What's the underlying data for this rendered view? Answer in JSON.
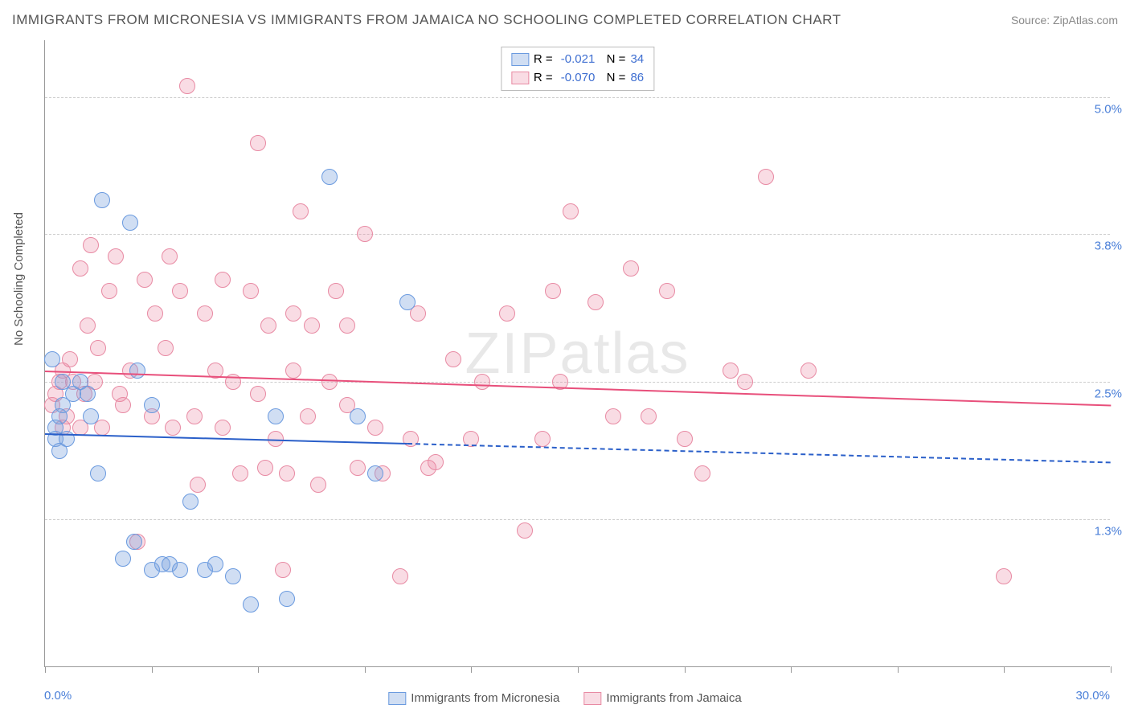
{
  "title": "IMMIGRANTS FROM MICRONESIA VS IMMIGRANTS FROM JAMAICA NO SCHOOLING COMPLETED CORRELATION CHART",
  "source": "Source: ZipAtlas.com",
  "watermark": "ZIPatlas",
  "ylabel": "No Schooling Completed",
  "chart": {
    "type": "scatter",
    "xlim": [
      0,
      30
    ],
    "ylim": [
      0,
      5.5
    ],
    "x_tick_positions": [
      0,
      3,
      6,
      9,
      12,
      15,
      18,
      21,
      24,
      27,
      30
    ],
    "x_start_label": "0.0%",
    "x_end_label": "30.0%",
    "y_ticks": [
      1.3,
      2.5,
      3.8,
      5.0
    ],
    "y_tick_labels": [
      "1.3%",
      "2.5%",
      "3.8%",
      "5.0%"
    ],
    "grid_color": "#cccccc",
    "axis_color": "#999999",
    "background": "#ffffff",
    "series": [
      {
        "name": "Immigrants from Micronesia",
        "fill": "rgba(120,160,220,0.35)",
        "stroke": "#6a9adf",
        "line_color": "#2a5fc9",
        "R": "-0.021",
        "N": "34",
        "trend": {
          "y_start": 2.05,
          "y_end": 1.8,
          "solid_until_x": 10.2
        },
        "points": [
          [
            0.2,
            2.7
          ],
          [
            0.3,
            2.1
          ],
          [
            0.3,
            2.0
          ],
          [
            0.4,
            1.9
          ],
          [
            0.5,
            2.5
          ],
          [
            0.5,
            2.3
          ],
          [
            0.8,
            2.4
          ],
          [
            1.0,
            2.5
          ],
          [
            1.2,
            2.4
          ],
          [
            1.5,
            1.7
          ],
          [
            1.6,
            4.1
          ],
          [
            2.2,
            0.95
          ],
          [
            2.4,
            3.9
          ],
          [
            2.5,
            1.1
          ],
          [
            2.6,
            2.6
          ],
          [
            3.0,
            0.85
          ],
          [
            3.3,
            0.9
          ],
          [
            3.5,
            0.9
          ],
          [
            3.8,
            0.85
          ],
          [
            4.1,
            1.45
          ],
          [
            4.5,
            0.85
          ],
          [
            5.3,
            0.8
          ],
          [
            5.8,
            0.55
          ],
          [
            6.5,
            2.2
          ],
          [
            6.8,
            0.6
          ],
          [
            8.0,
            4.3
          ],
          [
            8.8,
            2.2
          ],
          [
            9.3,
            1.7
          ],
          [
            10.2,
            3.2
          ],
          [
            3.0,
            2.3
          ],
          [
            1.3,
            2.2
          ],
          [
            0.6,
            2.0
          ],
          [
            4.8,
            0.9
          ],
          [
            0.4,
            2.2
          ]
        ]
      },
      {
        "name": "Immigrants from Jamaica",
        "fill": "rgba(235,140,165,0.30)",
        "stroke": "#e88aa3",
        "line_color": "#e84f7b",
        "R": "-0.070",
        "N": "86",
        "trend": {
          "y_start": 2.6,
          "y_end": 2.3,
          "solid_until_x": 30
        },
        "points": [
          [
            0.3,
            2.4
          ],
          [
            0.5,
            2.6
          ],
          [
            0.6,
            2.2
          ],
          [
            0.8,
            2.5
          ],
          [
            1.0,
            3.5
          ],
          [
            1.1,
            2.4
          ],
          [
            1.2,
            3.0
          ],
          [
            1.3,
            3.7
          ],
          [
            1.4,
            2.5
          ],
          [
            1.6,
            2.1
          ],
          [
            1.8,
            3.3
          ],
          [
            2.0,
            3.6
          ],
          [
            2.1,
            2.4
          ],
          [
            2.2,
            2.3
          ],
          [
            2.4,
            2.6
          ],
          [
            2.6,
            1.1
          ],
          [
            2.8,
            3.4
          ],
          [
            3.0,
            2.2
          ],
          [
            3.1,
            3.1
          ],
          [
            3.4,
            2.8
          ],
          [
            3.5,
            3.6
          ],
          [
            3.6,
            2.1
          ],
          [
            3.8,
            3.3
          ],
          [
            4.0,
            5.1
          ],
          [
            4.2,
            2.2
          ],
          [
            4.5,
            3.1
          ],
          [
            4.8,
            2.6
          ],
          [
            5.0,
            3.4
          ],
          [
            5.3,
            2.5
          ],
          [
            5.5,
            1.7
          ],
          [
            5.8,
            3.3
          ],
          [
            6.0,
            4.6
          ],
          [
            6.2,
            1.75
          ],
          [
            6.3,
            3.0
          ],
          [
            6.5,
            2.0
          ],
          [
            6.7,
            0.85
          ],
          [
            6.8,
            1.7
          ],
          [
            7.0,
            3.1
          ],
          [
            7.2,
            4.0
          ],
          [
            7.4,
            2.2
          ],
          [
            7.5,
            3.0
          ],
          [
            7.7,
            1.6
          ],
          [
            8.0,
            2.5
          ],
          [
            8.2,
            3.3
          ],
          [
            8.5,
            2.3
          ],
          [
            8.8,
            1.75
          ],
          [
            9.0,
            3.8
          ],
          [
            9.3,
            2.1
          ],
          [
            9.5,
            1.7
          ],
          [
            10.0,
            0.8
          ],
          [
            10.3,
            2.0
          ],
          [
            10.5,
            3.1
          ],
          [
            10.8,
            1.75
          ],
          [
            11.5,
            2.7
          ],
          [
            12.0,
            2.0
          ],
          [
            12.3,
            2.5
          ],
          [
            13.5,
            1.2
          ],
          [
            14.0,
            2.0
          ],
          [
            14.3,
            3.3
          ],
          [
            14.5,
            2.5
          ],
          [
            14.8,
            4.0
          ],
          [
            15.5,
            3.2
          ],
          [
            16.0,
            2.2
          ],
          [
            16.5,
            3.5
          ],
          [
            17.0,
            2.2
          ],
          [
            17.5,
            3.3
          ],
          [
            18.0,
            2.0
          ],
          [
            18.5,
            1.7
          ],
          [
            19.3,
            2.6
          ],
          [
            19.7,
            2.5
          ],
          [
            20.3,
            4.3
          ],
          [
            21.5,
            2.6
          ],
          [
            27.0,
            0.8
          ],
          [
            0.7,
            2.7
          ],
          [
            1.0,
            2.1
          ],
          [
            1.5,
            2.8
          ],
          [
            4.3,
            1.6
          ],
          [
            5.0,
            2.1
          ],
          [
            6.0,
            2.4
          ],
          [
            7.0,
            2.6
          ],
          [
            8.5,
            3.0
          ],
          [
            11.0,
            1.8
          ],
          [
            13.0,
            3.1
          ],
          [
            0.2,
            2.3
          ],
          [
            0.4,
            2.5
          ],
          [
            0.5,
            2.1
          ]
        ]
      }
    ]
  },
  "legend_bottom": [
    {
      "swatch_fill": "rgba(120,160,220,0.35)",
      "swatch_stroke": "#6a9adf",
      "label": "Immigrants from Micronesia"
    },
    {
      "swatch_fill": "rgba(235,140,165,0.30)",
      "swatch_stroke": "#e88aa3",
      "label": "Immigrants from Jamaica"
    }
  ],
  "point_radius": 10
}
